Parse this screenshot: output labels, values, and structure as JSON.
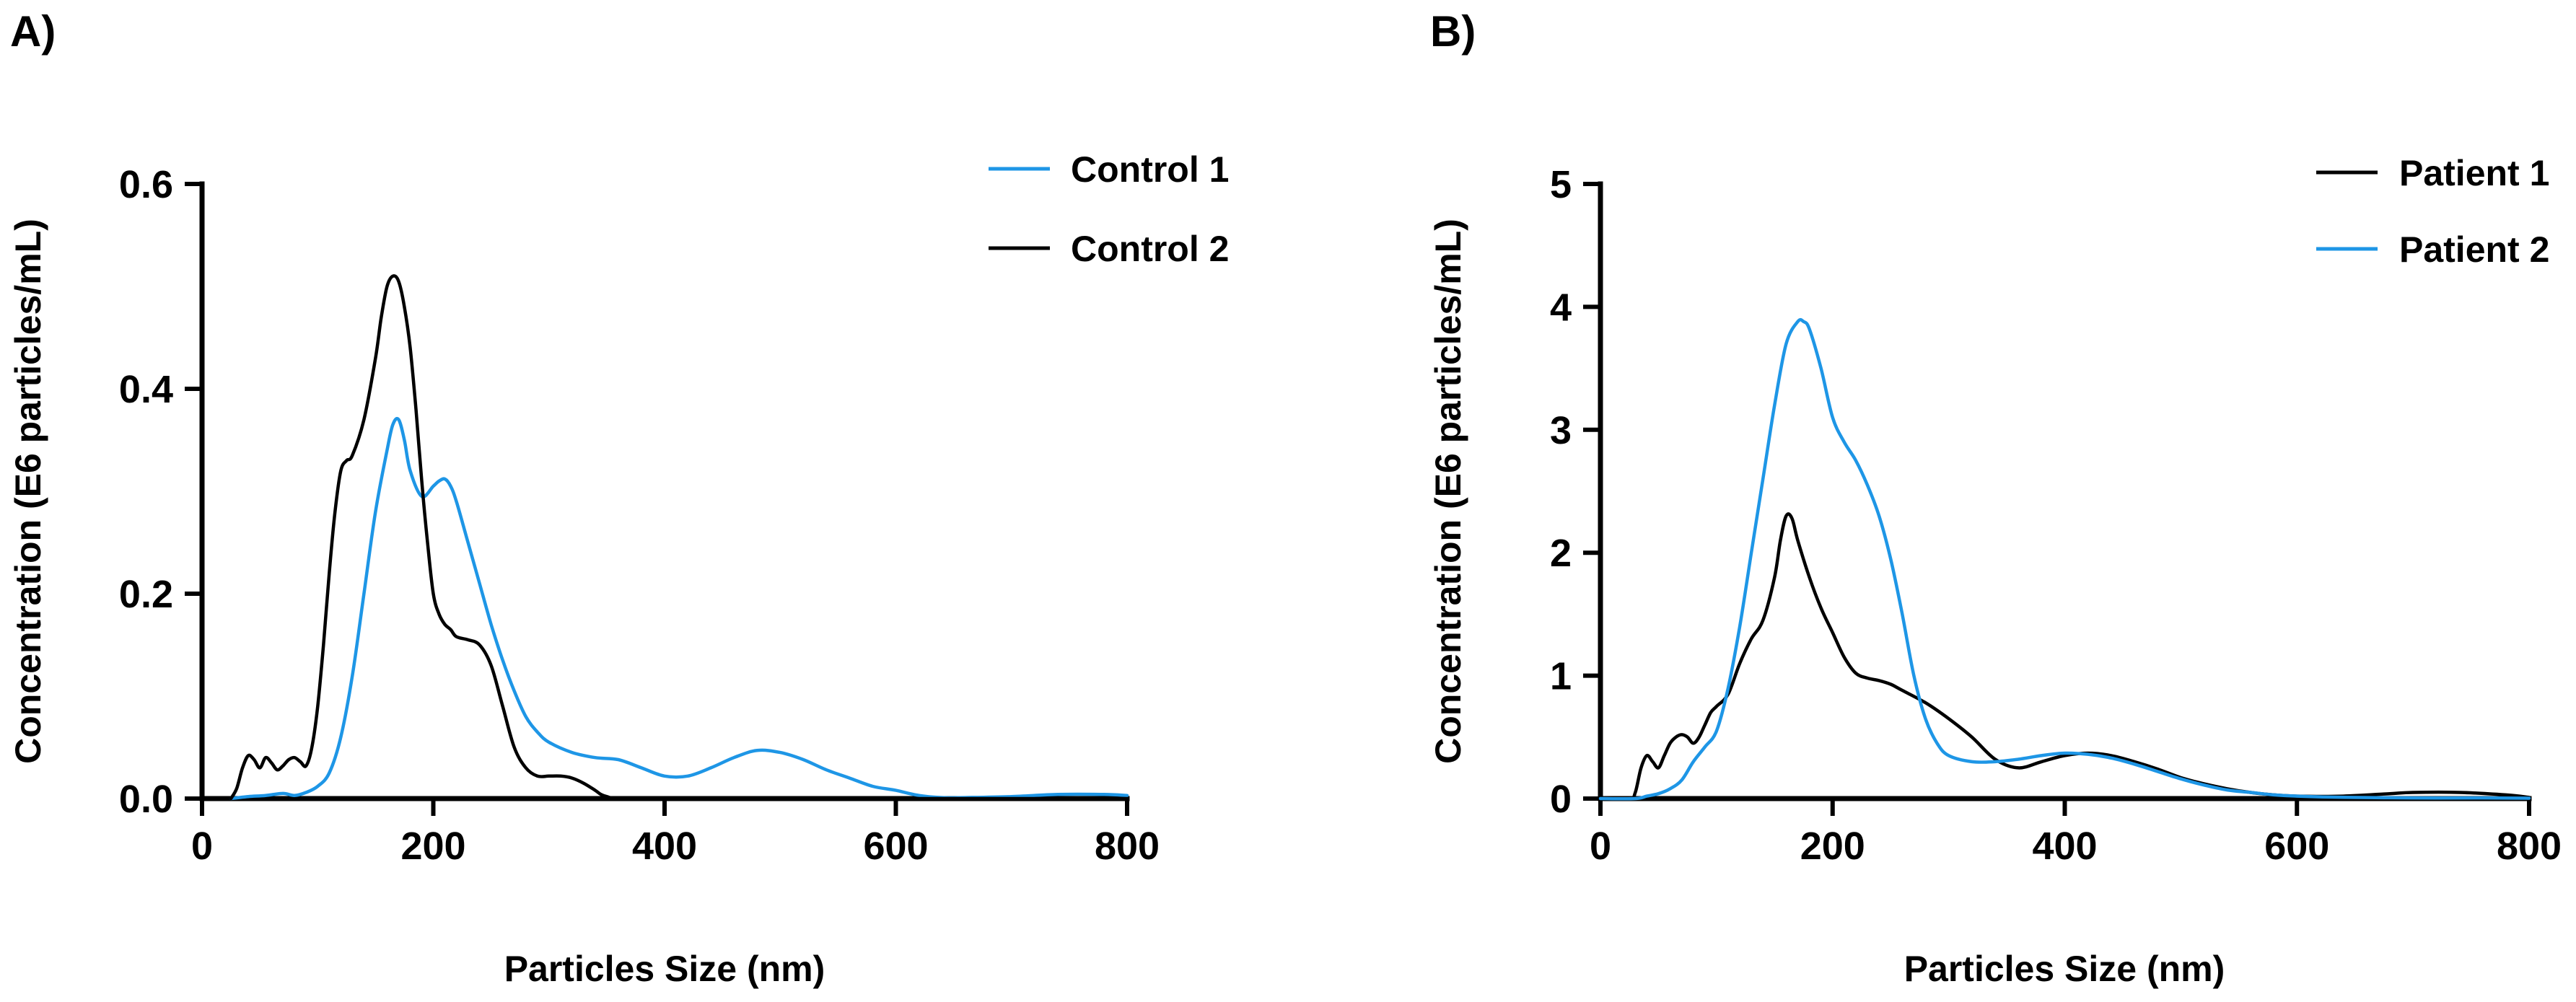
{
  "colors": {
    "blue": "#1e96e6",
    "black": "#000000"
  },
  "chart_data": [
    {
      "panel_label": "A)",
      "type": "line",
      "title": "",
      "xlabel": "Particles Size (nm)",
      "ylabel": "Concentration (E6 particles/mL)",
      "xlim": [
        0,
        800
      ],
      "ylim": [
        0,
        0.6
      ],
      "xticks": [
        0,
        200,
        400,
        600,
        800
      ],
      "xtick_labels": [
        "0",
        "200",
        "400",
        "600",
        "800"
      ],
      "yticks": [
        0,
        0.2,
        0.4,
        0.6
      ],
      "ytick_labels": [
        "0.0",
        "0.2",
        "0.4",
        "0.6"
      ],
      "grid": false,
      "legend_position": "top-right",
      "series": [
        {
          "name": "Control 1",
          "color": "#1e96e6",
          "x": [
            25,
            40,
            55,
            70,
            80,
            90,
            100,
            110,
            120,
            130,
            140,
            150,
            160,
            165,
            170,
            175,
            180,
            190,
            200,
            205,
            210,
            215,
            220,
            230,
            240,
            250,
            260,
            270,
            280,
            290,
            300,
            320,
            340,
            360,
            380,
            400,
            420,
            440,
            460,
            480,
            500,
            520,
            540,
            560,
            580,
            600,
            620,
            640,
            660,
            700,
            740,
            780,
            800
          ],
          "y": [
            0,
            0.002,
            0.003,
            0.005,
            0.003,
            0.006,
            0.012,
            0.025,
            0.06,
            0.12,
            0.2,
            0.28,
            0.34,
            0.365,
            0.37,
            0.35,
            0.32,
            0.295,
            0.305,
            0.31,
            0.312,
            0.305,
            0.29,
            0.25,
            0.21,
            0.17,
            0.135,
            0.105,
            0.08,
            0.065,
            0.055,
            0.045,
            0.04,
            0.038,
            0.03,
            0.022,
            0.022,
            0.03,
            0.04,
            0.047,
            0.045,
            0.038,
            0.028,
            0.02,
            0.012,
            0.008,
            0.003,
            0.001,
            0.001,
            0.002,
            0.004,
            0.004,
            0.003
          ]
        },
        {
          "name": "Control 2",
          "color": "#000000",
          "x": [
            25,
            30,
            35,
            40,
            45,
            50,
            55,
            60,
            65,
            70,
            75,
            80,
            85,
            90,
            95,
            100,
            105,
            110,
            115,
            120,
            125,
            130,
            140,
            150,
            155,
            160,
            165,
            170,
            175,
            180,
            185,
            190,
            195,
            200,
            205,
            210,
            215,
            220,
            230,
            240,
            250,
            260,
            270,
            280,
            290,
            300,
            310,
            320,
            330,
            340,
            345,
            350,
            360,
            400,
            600,
            800
          ],
          "y": [
            0,
            0.01,
            0.03,
            0.042,
            0.038,
            0.03,
            0.04,
            0.035,
            0.028,
            0.032,
            0.038,
            0.04,
            0.036,
            0.032,
            0.05,
            0.09,
            0.15,
            0.22,
            0.28,
            0.32,
            0.33,
            0.335,
            0.37,
            0.43,
            0.47,
            0.5,
            0.51,
            0.505,
            0.48,
            0.44,
            0.38,
            0.31,
            0.25,
            0.2,
            0.18,
            0.17,
            0.165,
            0.158,
            0.155,
            0.15,
            0.13,
            0.09,
            0.05,
            0.03,
            0.022,
            0.022,
            0.022,
            0.02,
            0.015,
            0.008,
            0.004,
            0.002,
            0,
            0,
            0,
            0
          ]
        }
      ]
    },
    {
      "panel_label": "B)",
      "type": "line",
      "title": "",
      "xlabel": "Particles Size (nm)",
      "ylabel": "Concentration (E6 particles/mL)",
      "xlim": [
        0,
        800
      ],
      "ylim": [
        0,
        5
      ],
      "xticks": [
        0,
        200,
        400,
        600,
        800
      ],
      "xtick_labels": [
        "0",
        "200",
        "400",
        "600",
        "800"
      ],
      "yticks": [
        0,
        1,
        2,
        3,
        4,
        5
      ],
      "ytick_labels": [
        "0",
        "1",
        "2",
        "3",
        "4",
        "5"
      ],
      "grid": false,
      "legend_position": "top-right",
      "series": [
        {
          "name": "Patient 1",
          "color": "#000000",
          "x": [
            0,
            25,
            30,
            35,
            40,
            45,
            50,
            55,
            60,
            65,
            70,
            75,
            80,
            85,
            90,
            95,
            100,
            110,
            120,
            130,
            140,
            150,
            155,
            160,
            165,
            170,
            180,
            190,
            200,
            210,
            220,
            230,
            240,
            250,
            260,
            280,
            300,
            320,
            340,
            360,
            380,
            400,
            420,
            440,
            460,
            480,
            500,
            520,
            540,
            560,
            580,
            600,
            640,
            680,
            700,
            740,
            780,
            800
          ],
          "y": [
            0,
            0,
            0.05,
            0.25,
            0.35,
            0.3,
            0.25,
            0.35,
            0.45,
            0.5,
            0.52,
            0.5,
            0.45,
            0.5,
            0.6,
            0.7,
            0.75,
            0.85,
            1.1,
            1.3,
            1.45,
            1.8,
            2.1,
            2.3,
            2.28,
            2.1,
            1.8,
            1.55,
            1.35,
            1.15,
            1.02,
            0.98,
            0.96,
            0.93,
            0.88,
            0.78,
            0.65,
            0.5,
            0.32,
            0.25,
            0.3,
            0.35,
            0.37,
            0.35,
            0.3,
            0.24,
            0.17,
            0.12,
            0.08,
            0.05,
            0.03,
            0.02,
            0.02,
            0.04,
            0.05,
            0.05,
            0.03,
            0.01
          ]
        },
        {
          "name": "Patient 2",
          "color": "#1e96e6",
          "x": [
            0,
            30,
            40,
            50,
            60,
            70,
            80,
            90,
            100,
            110,
            120,
            130,
            140,
            150,
            160,
            170,
            175,
            180,
            190,
            200,
            210,
            220,
            230,
            240,
            250,
            260,
            270,
            280,
            290,
            300,
            320,
            340,
            360,
            380,
            400,
            420,
            440,
            460,
            480,
            500,
            520,
            540,
            560,
            580,
            600,
            640,
            700,
            760,
            800
          ],
          "y": [
            0,
            0,
            0.02,
            0.04,
            0.08,
            0.15,
            0.3,
            0.42,
            0.55,
            0.9,
            1.4,
            2.0,
            2.6,
            3.2,
            3.7,
            3.88,
            3.88,
            3.82,
            3.5,
            3.1,
            2.9,
            2.75,
            2.55,
            2.3,
            1.95,
            1.5,
            1.0,
            0.65,
            0.45,
            0.35,
            0.3,
            0.3,
            0.32,
            0.35,
            0.37,
            0.36,
            0.33,
            0.28,
            0.22,
            0.16,
            0.11,
            0.07,
            0.05,
            0.03,
            0.02,
            0.01,
            0.005,
            0.005,
            0.003
          ]
        }
      ]
    }
  ]
}
